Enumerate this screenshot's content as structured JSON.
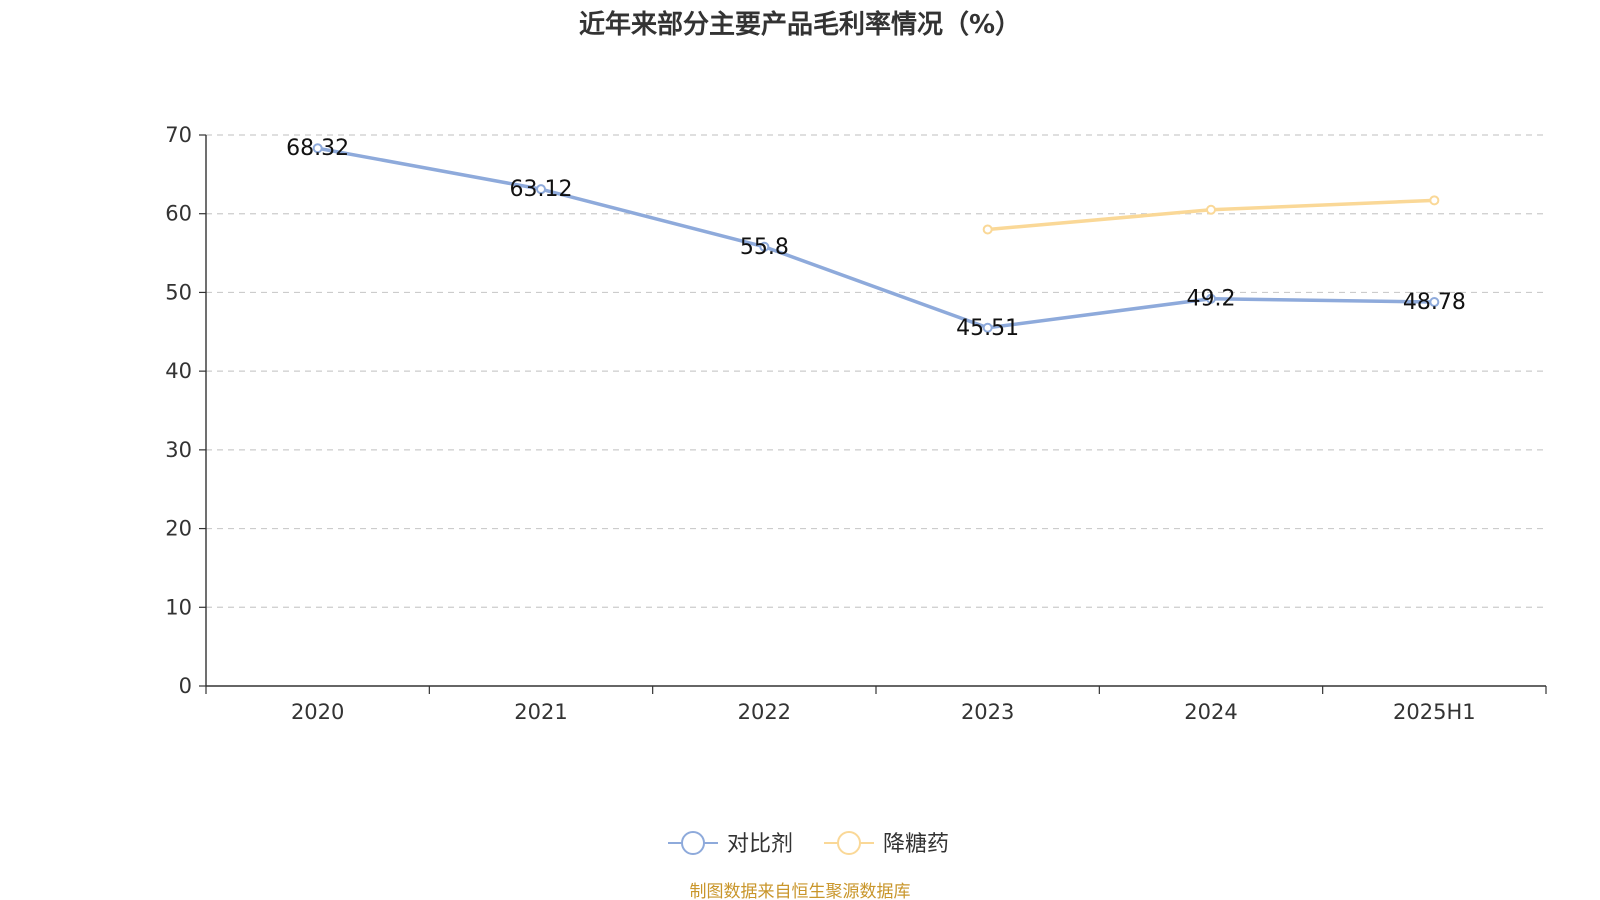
{
  "chart_data": {
    "type": "line",
    "title": "近年来部分主要产品毛利率情况（%）",
    "categories": [
      "2020",
      "2021",
      "2022",
      "2023",
      "2024",
      "2025H1"
    ],
    "ylim": [
      0,
      70
    ],
    "yticks": [
      0,
      10,
      20,
      30,
      40,
      50,
      60,
      70
    ],
    "grid": true,
    "legend_position": "bottom-center",
    "series": [
      {
        "name": "对比剂",
        "color": "#8eaadb",
        "values": [
          68.32,
          63.12,
          55.8,
          45.51,
          49.2,
          48.78
        ],
        "labels": [
          "68.32",
          "63.12",
          "55.8",
          "45.51",
          "49.2",
          "48.78"
        ]
      },
      {
        "name": "降糖药",
        "color": "#fad897",
        "values": [
          null,
          null,
          null,
          58,
          60.5,
          61.7
        ],
        "labels": null
      }
    ],
    "source": "制图数据来自恒生聚源数据库"
  }
}
